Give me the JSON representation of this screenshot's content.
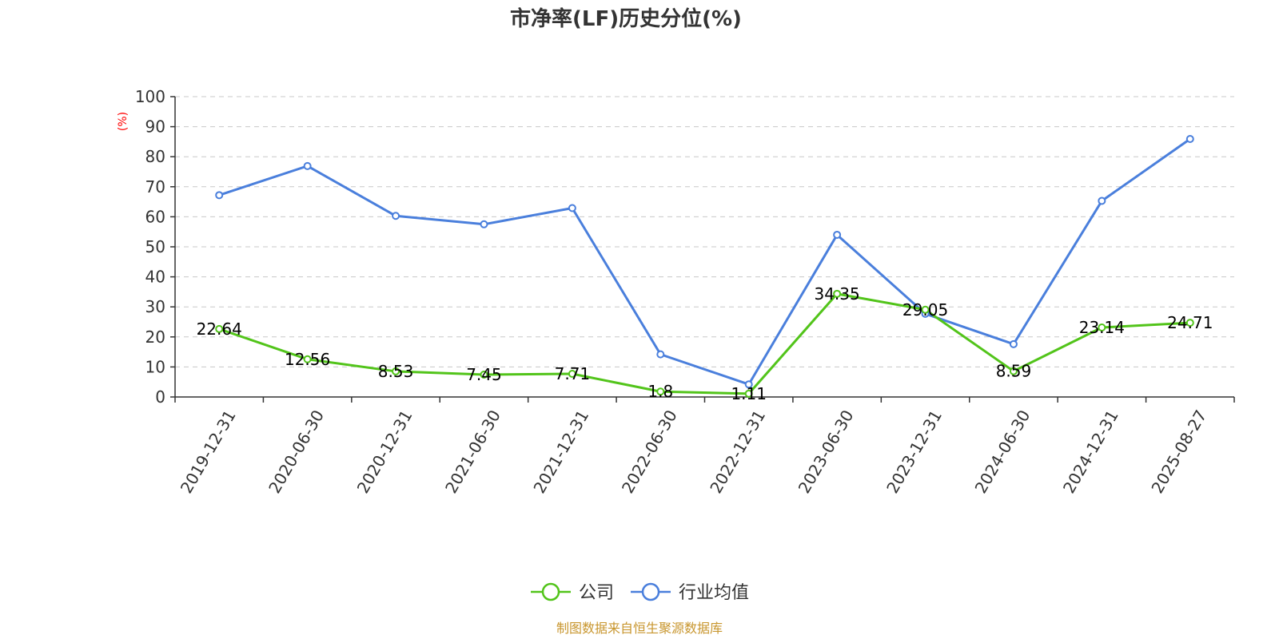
{
  "chart_data": {
    "type": "line",
    "title": "市净率(LF)历史分位(%)",
    "yunit": "(%)",
    "ylim": [
      0,
      100
    ],
    "yticks": [
      0,
      10,
      20,
      30,
      40,
      50,
      60,
      70,
      80,
      90,
      100
    ],
    "grid": true,
    "legend_position": "bottom-center",
    "categories": [
      "2019-12-31",
      "2020-06-30",
      "2020-12-31",
      "2021-06-30",
      "2021-12-31",
      "2022-06-30",
      "2022-12-31",
      "2023-06-30",
      "2023-12-31",
      "2024-06-30",
      "2024-12-31",
      "2025-08-27"
    ],
    "series": [
      {
        "name": "公司",
        "color": "#52c41a",
        "show_labels": true,
        "values": [
          22.64,
          12.56,
          8.53,
          7.45,
          7.71,
          1.8,
          1.11,
          34.35,
          29.05,
          8.59,
          23.14,
          24.71
        ],
        "labels": [
          "22.64",
          "12.56",
          "8.53",
          "7.45",
          "7.71",
          "1.8",
          "1.11",
          "34.35",
          "29.05",
          "8.59",
          "23.14",
          "24.71"
        ]
      },
      {
        "name": "行业均值",
        "color": "#4a7fdc",
        "show_labels": false,
        "values": [
          67.2,
          76.9,
          60.3,
          57.5,
          62.9,
          14.2,
          4.2,
          54.0,
          27.7,
          17.6,
          65.3,
          85.9
        ]
      }
    ],
    "source": "制图数据来自恒生聚源数据库",
    "source_color": "#c8962e",
    "unit_color": "#ff0000"
  }
}
